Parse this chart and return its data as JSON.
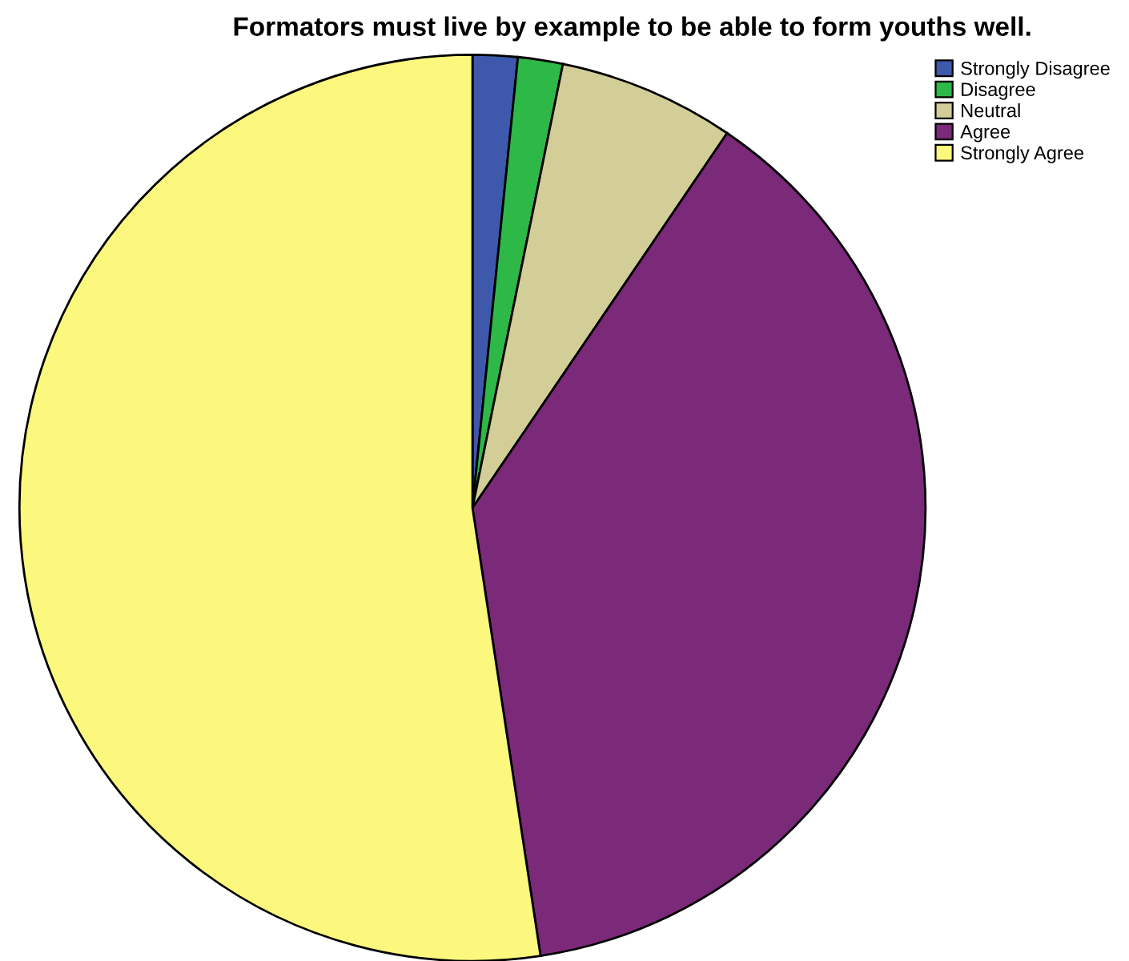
{
  "chart_data": {
    "type": "pie",
    "title": "Formators must live by example to be able to form youths well.",
    "categories": [
      "Strongly Disagree",
      "Disagree",
      "Neutral",
      "Agree",
      "Strongly Agree"
    ],
    "values": [
      1.6,
      1.6,
      6.3,
      38.1,
      52.4
    ],
    "colors": [
      "#3e58ac",
      "#2eb848",
      "#d3ce97",
      "#7b2979",
      "#fbf87d"
    ],
    "legend": "top right"
  }
}
